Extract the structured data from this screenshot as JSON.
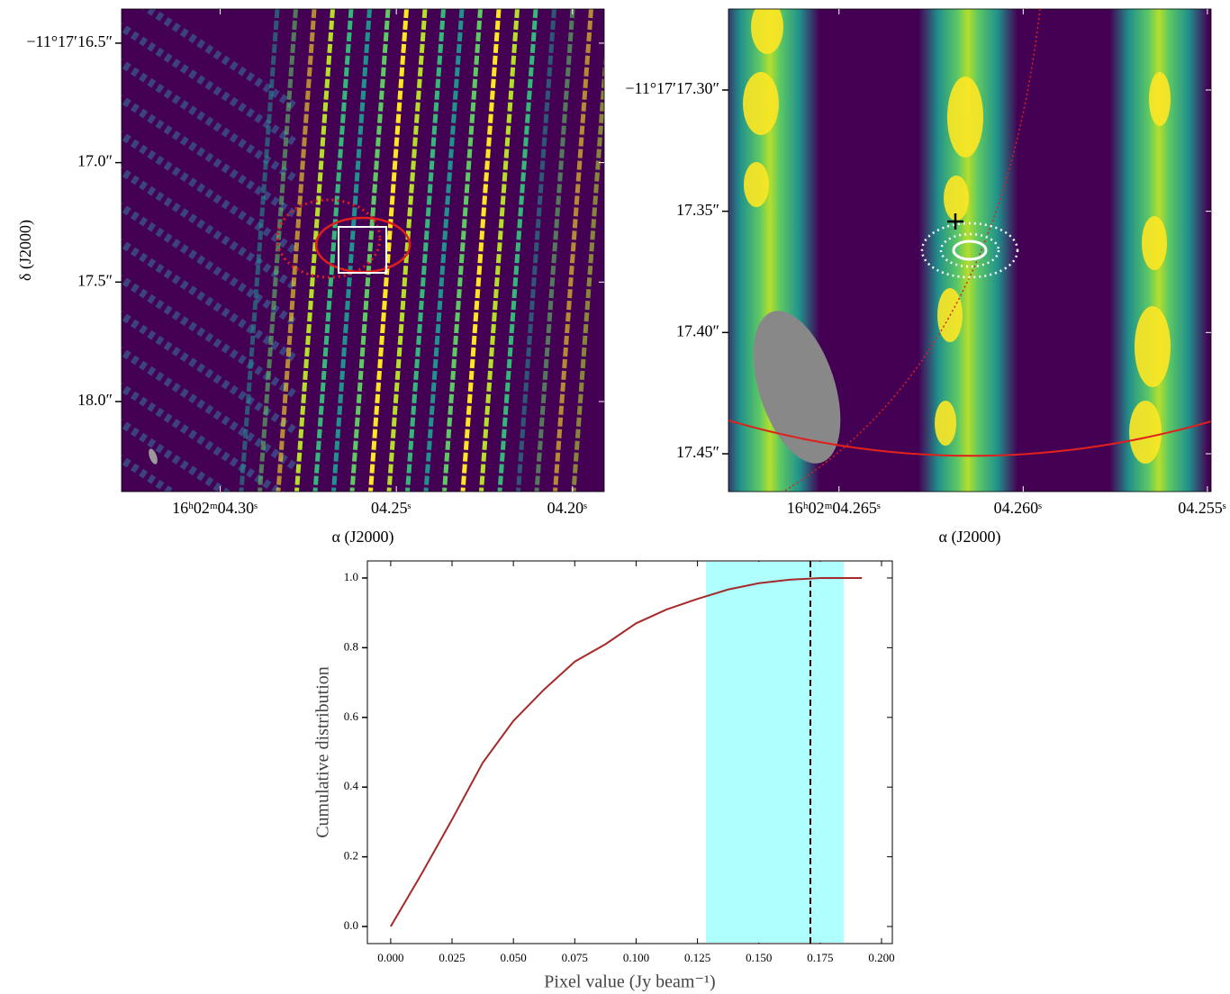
{
  "chart_data": [
    {
      "type": "image",
      "xlabel": "α (J2000)",
      "ylabel": "δ (J2000)",
      "xlim": [
        4.328,
        4.191
      ],
      "ylim": [
        18.377,
        16.357
      ],
      "xticks": [
        {
          "value": 4.3,
          "label": "16ʰ02ᵐ04.30ˢ"
        },
        {
          "value": 4.25,
          "label": "04.25ˢ"
        },
        {
          "value": 4.2,
          "label": "04.20ˢ"
        }
      ],
      "yticks": [
        {
          "value": 16.5,
          "label": "−11°17′16.5″"
        },
        {
          "value": 17.0,
          "label": "17.0″"
        },
        {
          "value": 17.5,
          "label": "17.5″"
        },
        {
          "value": 18.0,
          "label": "18.0″"
        }
      ]
    },
    {
      "type": "image",
      "xlabel": "α (J2000)",
      "xlim": [
        4.268,
        4.2549
      ],
      "ylim": [
        17.4656,
        17.2666
      ],
      "xticks": [
        {
          "value": 4.265,
          "label": "16ʰ02ᵐ04.265ˢ"
        },
        {
          "value": 4.26,
          "label": "04.260ˢ"
        },
        {
          "value": 4.255,
          "label": "04.255ˢ"
        }
      ],
      "yticks": [
        {
          "value": 17.3,
          "label": "−11°17′17.30″"
        },
        {
          "value": 17.35,
          "label": "17.35″"
        },
        {
          "value": 17.4,
          "label": "17.40″"
        },
        {
          "value": 17.45,
          "label": "17.45″"
        }
      ]
    },
    {
      "type": "line",
      "xlabel": "Pixel value (Jy beam⁻¹)",
      "ylabel": "Cumulative distribution",
      "x": [
        0,
        0.0125,
        0.025,
        0.0375,
        0.05,
        0.0625,
        0.075,
        0.0875,
        0.1,
        0.1125,
        0.125,
        0.1375,
        0.15,
        0.1625,
        0.175,
        0.192
      ],
      "values": [
        0,
        0.15,
        0.307,
        0.47,
        0.59,
        0.68,
        0.76,
        0.81,
        0.87,
        0.91,
        0.94,
        0.967,
        0.985,
        0.995,
        1.0,
        1.0
      ],
      "color": "#a52a2a",
      "span": [
        0.1284,
        0.1846
      ],
      "span_color": "#b0ffff",
      "vline": 0.171,
      "xlim": [
        -0.0095,
        0.2044
      ],
      "ylim": [
        -0.049,
        1.049
      ],
      "xticks": [
        {
          "value": 0,
          "label": "0.000"
        },
        {
          "value": 0.025,
          "label": "0.025"
        },
        {
          "value": 0.05,
          "label": "0.050"
        },
        {
          "value": 0.075,
          "label": "0.075"
        },
        {
          "value": 0.1,
          "label": "0.100"
        },
        {
          "value": 0.125,
          "label": "0.125"
        },
        {
          "value": 0.15,
          "label": "0.150"
        },
        {
          "value": 0.175,
          "label": "0.175"
        },
        {
          "value": 0.2,
          "label": "0.200"
        }
      ],
      "yticks": [
        {
          "value": 0,
          "label": "0.0"
        },
        {
          "value": 0.2,
          "label": "0.2"
        },
        {
          "value": 0.4,
          "label": "0.4"
        },
        {
          "value": 0.6,
          "label": "0.6"
        },
        {
          "value": 0.8,
          "label": "0.8"
        },
        {
          "value": 1,
          "label": "1.0"
        }
      ]
    }
  ]
}
